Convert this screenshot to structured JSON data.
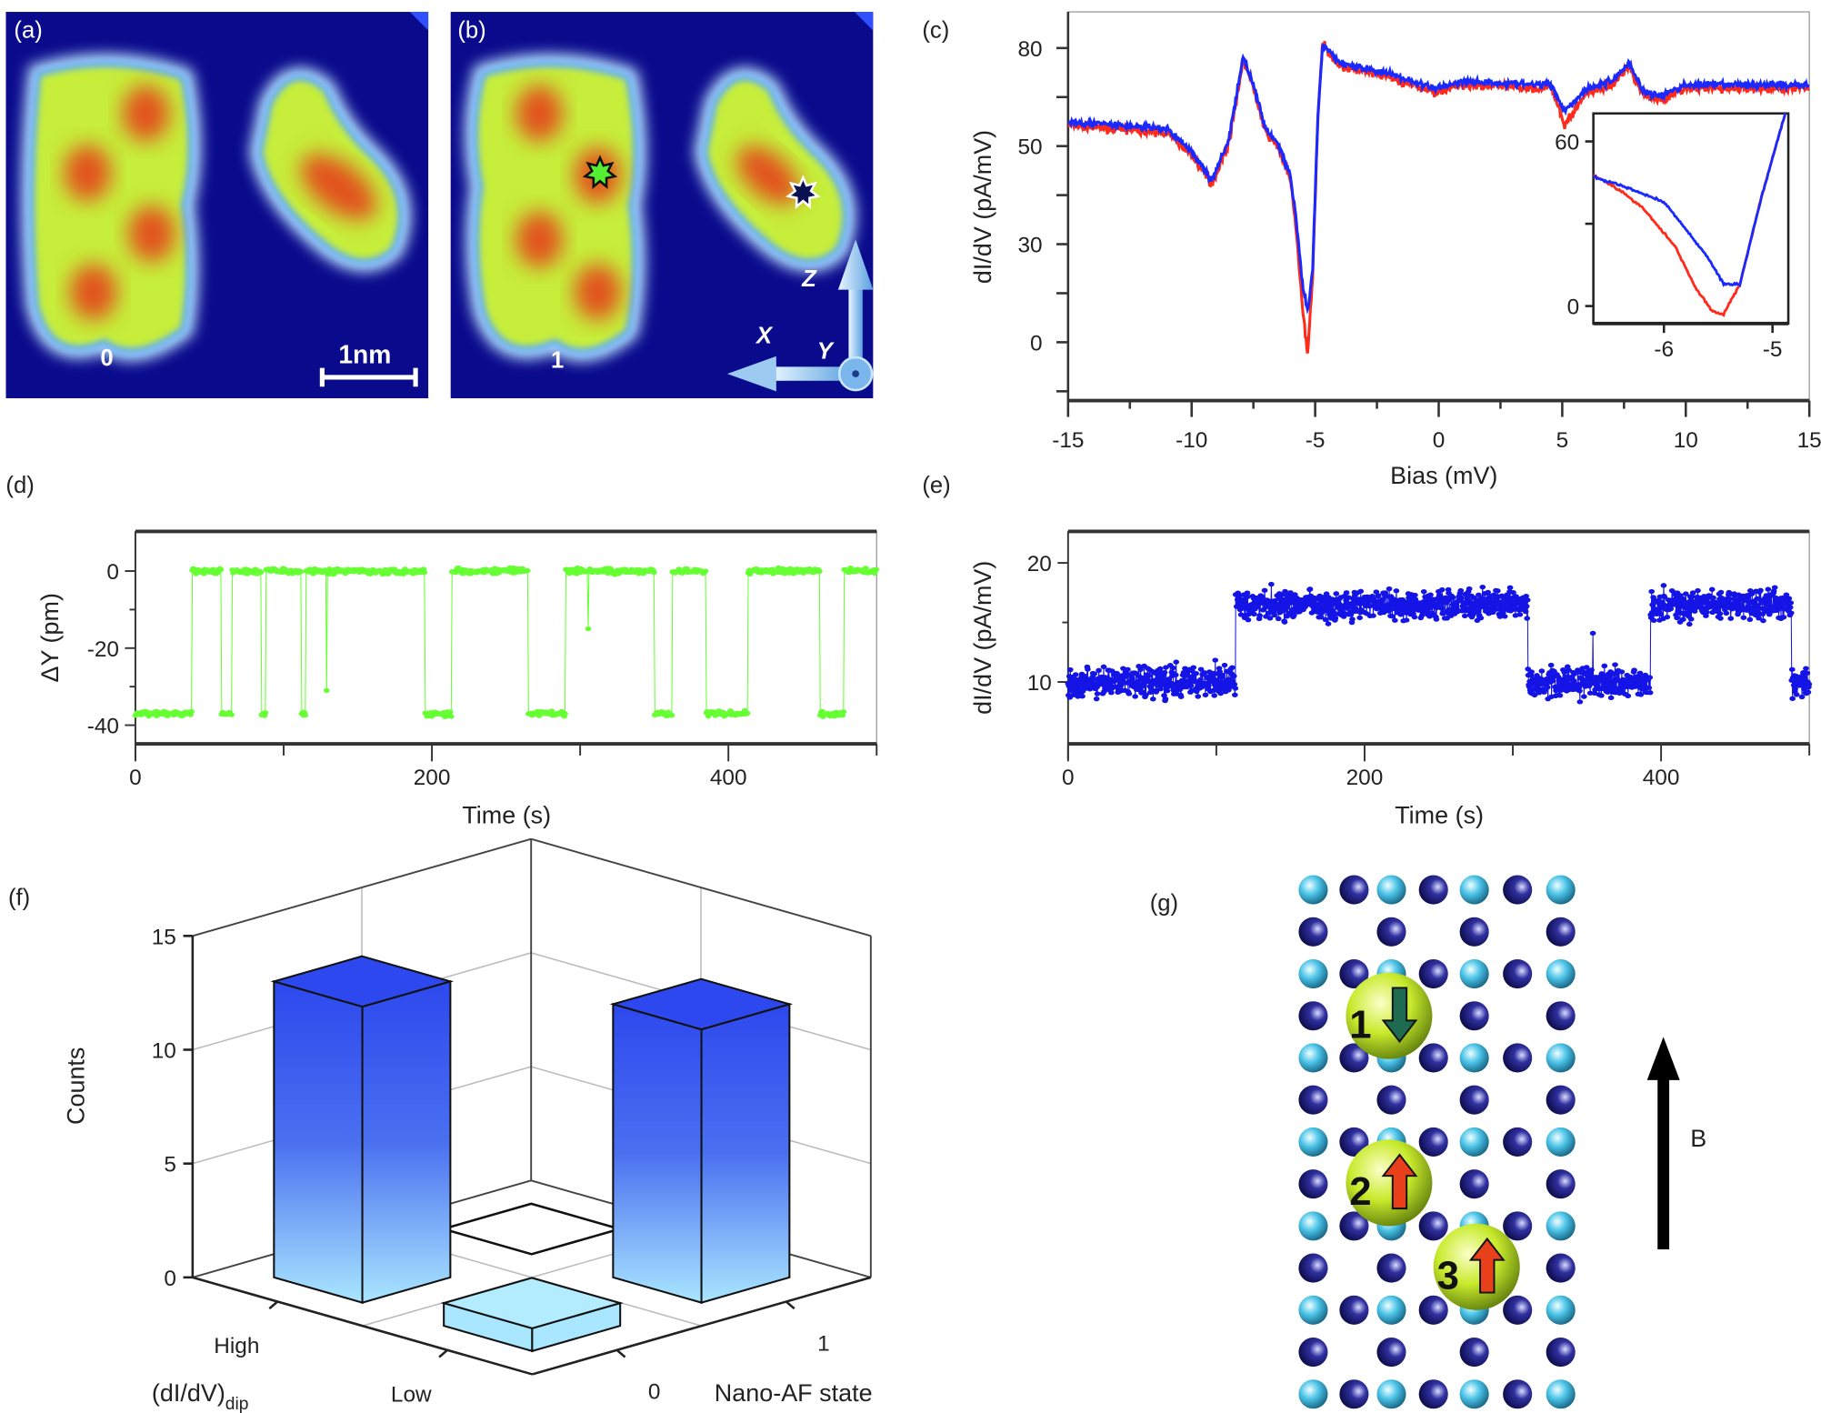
{
  "panels": {
    "a": "(a)",
    "b": "(b)",
    "c": "(c)",
    "d": "(d)",
    "e": "(e)",
    "f": "(f)",
    "g": "(g)"
  },
  "stm": {
    "a_state_label": "0",
    "b_state_label": "1",
    "scale_bar_label": "1nm",
    "axes": {
      "z": "Z",
      "x": "X",
      "y": "Y"
    },
    "colors": {
      "background": "#0a0a8c",
      "halo": "#5aa8ff",
      "molecule": "#c6ee3a",
      "lobe": "#e2521a",
      "star_green": "#55ee33",
      "star_dark": "#0a1050"
    }
  },
  "chart_data": [
    {
      "panel": "c",
      "type": "line",
      "xlabel": "Bias (mV)",
      "ylabel": "dI/dV (pA/mV)",
      "xlim": [
        -15,
        15
      ],
      "ylim": [
        -16,
        90
      ],
      "xticks": [
        "-15",
        "-10",
        "-5",
        "0",
        "5",
        "10",
        "15"
      ],
      "yticks": [
        "80",
        "50",
        "30",
        "0"
      ],
      "grid": false,
      "series": [
        {
          "color": "#ff2a1a",
          "points": [
            [
              -15,
              59
            ],
            [
              -11,
              57
            ],
            [
              -10,
              51
            ],
            [
              -9.2,
              43
            ],
            [
              -8.5,
              54
            ],
            [
              -7.9,
              77
            ],
            [
              -7.5,
              69
            ],
            [
              -7,
              57
            ],
            [
              -6.5,
              53
            ],
            [
              -6,
              44
            ],
            [
              -5.8,
              33
            ],
            [
              -5.5,
              8
            ],
            [
              -5.3,
              -3
            ],
            [
              -5.1,
              18
            ],
            [
              -4.9,
              60
            ],
            [
              -4.7,
              81
            ],
            [
              -4,
              75
            ],
            [
              -2,
              72
            ],
            [
              -0.2,
              68
            ],
            [
              1,
              70
            ],
            [
              4,
              69
            ],
            [
              4.5,
              70
            ],
            [
              5.1,
              59
            ],
            [
              6,
              68
            ],
            [
              7,
              70
            ],
            [
              7.7,
              75
            ],
            [
              8.3,
              67
            ],
            [
              9,
              66
            ],
            [
              10,
              69
            ],
            [
              15,
              69
            ]
          ]
        },
        {
          "color": "#1a2aff",
          "points": [
            [
              -15,
              60
            ],
            [
              -11,
              58
            ],
            [
              -10,
              52
            ],
            [
              -9.2,
              44
            ],
            [
              -8.5,
              55
            ],
            [
              -7.9,
              78
            ],
            [
              -7.5,
              70
            ],
            [
              -7,
              58
            ],
            [
              -6.5,
              54
            ],
            [
              -6,
              45
            ],
            [
              -5.8,
              35
            ],
            [
              -5.5,
              15
            ],
            [
              -5.3,
              8
            ],
            [
              -5.1,
              20
            ],
            [
              -4.9,
              60
            ],
            [
              -4.7,
              81
            ],
            [
              -4,
              76
            ],
            [
              -2,
              73
            ],
            [
              -0.2,
              69
            ],
            [
              1,
              71
            ],
            [
              4,
              70
            ],
            [
              4.5,
              70.5
            ],
            [
              5.1,
              63
            ],
            [
              6,
              69
            ],
            [
              7,
              71
            ],
            [
              7.7,
              76
            ],
            [
              8.3,
              68
            ],
            [
              9,
              67
            ],
            [
              10,
              70
            ],
            [
              15,
              70
            ]
          ]
        }
      ]
    },
    {
      "panel": "c-inset",
      "type": "line",
      "xlim": [
        -6.65,
        -4.85
      ],
      "ylim": [
        -6,
        70
      ],
      "xticks": [
        "-6",
        "-5"
      ],
      "yticks": [
        "60",
        "0"
      ],
      "series": [
        {
          "color": "#ff2a1a",
          "points": [
            [
              -6.65,
              48
            ],
            [
              -6.4,
              42
            ],
            [
              -6.2,
              36
            ],
            [
              -5.9,
              22
            ],
            [
              -5.7,
              6
            ],
            [
              -5.55,
              -2
            ],
            [
              -5.45,
              -3
            ],
            [
              -5.3,
              8
            ],
            [
              -5.1,
              40
            ],
            [
              -4.87,
              72
            ]
          ]
        },
        {
          "color": "#1a2aff",
          "points": [
            [
              -6.65,
              47
            ],
            [
              -6.4,
              44
            ],
            [
              -6.0,
              38
            ],
            [
              -5.8,
              28
            ],
            [
              -5.6,
              18
            ],
            [
              -5.45,
              8
            ],
            [
              -5.3,
              8
            ],
            [
              -5.1,
              40
            ],
            [
              -4.87,
              72
            ]
          ]
        }
      ]
    },
    {
      "panel": "d",
      "type": "scatter",
      "xlabel": "Time (s)",
      "ylabel": "ΔY (pm)",
      "xlim": [
        0,
        500
      ],
      "ylim": [
        -45,
        10
      ],
      "xticks": [
        "0",
        "200",
        "400"
      ],
      "yticks": [
        "0",
        "-20",
        "-40"
      ],
      "color": "#66ff33",
      "levels": {
        "high": 0,
        "low": -37
      },
      "high_intervals": [
        [
          38,
          58
        ],
        [
          65,
          85
        ],
        [
          88,
          112
        ],
        [
          115,
          195
        ],
        [
          213,
          265
        ],
        [
          290,
          350
        ],
        [
          362,
          385
        ],
        [
          413,
          462
        ],
        [
          478,
          500
        ]
      ]
    },
    {
      "panel": "e",
      "type": "scatter",
      "xlabel": "Time (s)",
      "ylabel": "dI/dV (pA/mV)",
      "xlim": [
        0,
        500
      ],
      "ylim": [
        4.8,
        22.6
      ],
      "xticks": [
        "0",
        "200",
        "400"
      ],
      "yticks": [
        "20",
        "10"
      ],
      "color": "#1414e6",
      "levels": {
        "high": 16.5,
        "low": 10
      },
      "high_intervals": [
        [
          113,
          310
        ],
        [
          393,
          488
        ]
      ]
    },
    {
      "panel": "f",
      "type": "bar3d",
      "zlabel": "Counts",
      "zticks": [
        "0",
        "5",
        "10",
        "15"
      ],
      "zlim": [
        0,
        15
      ],
      "xlabel_main": "(dI/dV)",
      "xlabel_sub": "dip",
      "xcategories": [
        "High",
        "Low"
      ],
      "ylabel": "Nano-AF state",
      "ycategories": [
        "1",
        "0"
      ],
      "bars": [
        {
          "dip": "High",
          "state": "1",
          "value": 0
        },
        {
          "dip": "High",
          "state": "0",
          "value": 13
        },
        {
          "dip": "Low",
          "state": "1",
          "value": 12
        },
        {
          "dip": "Low",
          "state": "0",
          "value": 1
        }
      ],
      "colors": {
        "bar_top": "#2d48ee",
        "bar_bottom": "#a9e6ff"
      }
    }
  ],
  "lattice": {
    "atoms": [
      {
        "label": "1",
        "spin": "down",
        "arrow_color": "#1f6b52"
      },
      {
        "label": "2",
        "spin": "up",
        "arrow_color": "#e8401a"
      },
      {
        "label": "3",
        "spin": "up",
        "arrow_color": "#e8401a"
      }
    ],
    "field_label": "B"
  }
}
